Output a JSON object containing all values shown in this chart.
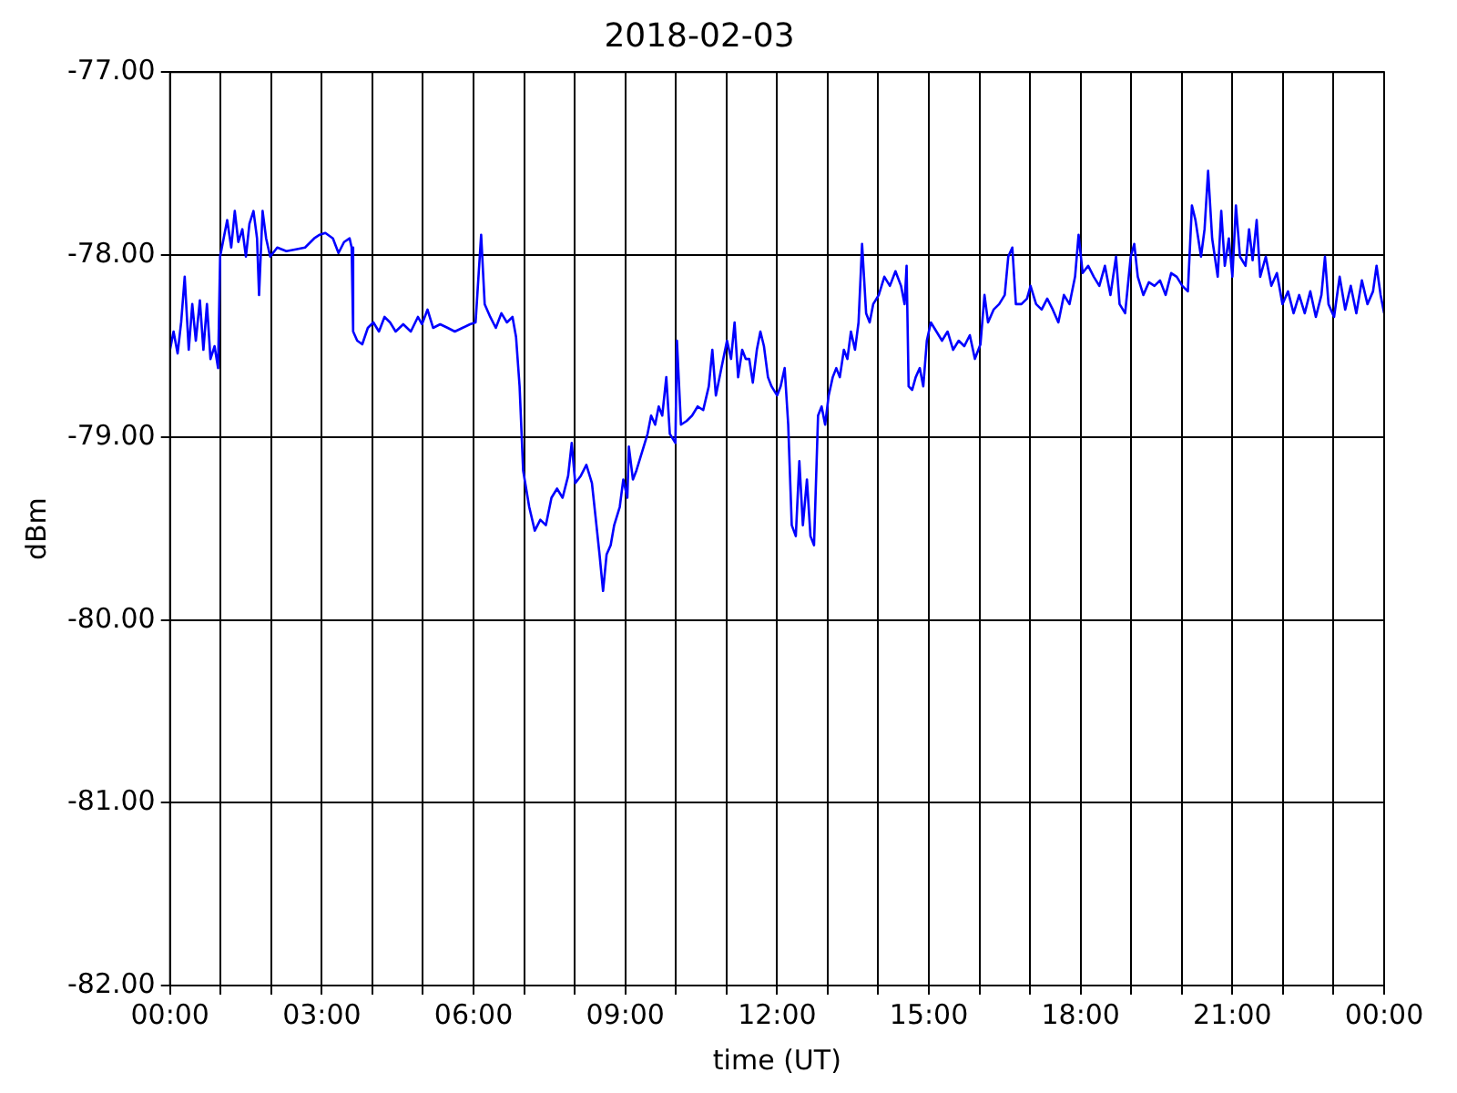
{
  "chart_data": {
    "type": "line",
    "title": "2018-02-03",
    "xlabel": "time (UT)",
    "ylabel": "dBm",
    "x": [
      0,
      0.07,
      0.15,
      0.22,
      0.29,
      0.37,
      0.44,
      0.51,
      0.59,
      0.66,
      0.73,
      0.8,
      0.88,
      0.95,
      0.99,
      1.06,
      1.13,
      1.21,
      1.28,
      1.35,
      1.43,
      1.5,
      1.57,
      1.65,
      1.72,
      1.76,
      1.83,
      1.9,
      1.98,
      2.12,
      2.3,
      2.49,
      2.67,
      2.85,
      2.96,
      3.07,
      3.22,
      3.33,
      3.44,
      3.55,
      3.59,
      3.62,
      3.7,
      3.8,
      3.91,
      4.02,
      4.13,
      4.24,
      4.35,
      4.46,
      4.61,
      4.76,
      4.9,
      4.98,
      5.09,
      5.2,
      5.34,
      5.49,
      5.63,
      5.78,
      5.93,
      6.04,
      6.15,
      6.22,
      6.33,
      6.44,
      6.55,
      6.66,
      6.77,
      6.84,
      6.91,
      6.98,
      7.1,
      7.21,
      7.32,
      7.43,
      7.54,
      7.65,
      7.76,
      7.87,
      7.94,
      8.01,
      8.12,
      8.23,
      8.34,
      8.41,
      8.49,
      8.56,
      8.63,
      8.71,
      8.78,
      8.89,
      8.96,
      9.04,
      9.07,
      9.15,
      9.22,
      9.33,
      9.44,
      9.51,
      9.59,
      9.66,
      9.73,
      9.81,
      9.88,
      9.99,
      10.02,
      10.1,
      10.21,
      10.32,
      10.43,
      10.54,
      10.65,
      10.72,
      10.79,
      10.9,
      11.01,
      11.09,
      11.16,
      11.23,
      11.31,
      11.38,
      11.45,
      11.52,
      11.6,
      11.67,
      11.74,
      11.82,
      11.89,
      12,
      12.07,
      12.15,
      12.22,
      12.29,
      12.37,
      12.44,
      12.51,
      12.59,
      12.66,
      12.73,
      12.81,
      12.88,
      12.95,
      13.02,
      13.1,
      13.17,
      13.24,
      13.32,
      13.39,
      13.46,
      13.54,
      13.61,
      13.68,
      13.76,
      13.83,
      13.9,
      14.01,
      14.12,
      14.23,
      14.34,
      14.45,
      14.52,
      14.56,
      14.6,
      14.67,
      14.74,
      14.82,
      14.89,
      14.96,
      15.04,
      15.15,
      15.26,
      15.37,
      15.48,
      15.59,
      15.7,
      15.81,
      15.91,
      16.02,
      16.1,
      16.17,
      16.28,
      16.39,
      16.5,
      16.57,
      16.65,
      16.72,
      16.83,
      16.94,
      17.01,
      17.12,
      17.23,
      17.34,
      17.45,
      17.56,
      17.67,
      17.78,
      17.89,
      17.96,
      18.04,
      18.15,
      18.26,
      18.37,
      18.48,
      18.59,
      18.7,
      18.77,
      18.88,
      18.99,
      19.06,
      19.13,
      19.24,
      19.35,
      19.46,
      19.57,
      19.68,
      19.79,
      19.9,
      20.01,
      20.12,
      20.2,
      20.27,
      20.38,
      20.45,
      20.52,
      20.6,
      20.71,
      20.78,
      20.85,
      20.93,
      21,
      21.07,
      21.15,
      21.26,
      21.33,
      21.4,
      21.48,
      21.55,
      21.66,
      21.77,
      21.88,
      21.99,
      22.1,
      22.21,
      22.32,
      22.43,
      22.54,
      22.65,
      22.76,
      22.83,
      22.9,
      23.01,
      23.12,
      23.23,
      23.34,
      23.45,
      23.56,
      23.67,
      23.78,
      23.85,
      23.93,
      24
    ],
    "series": [
      {
        "color": "#0000ff",
        "values": [
          -78.52,
          -78.42,
          -78.54,
          -78.37,
          -78.12,
          -78.52,
          -78.27,
          -78.47,
          -78.25,
          -78.52,
          -78.27,
          -78.57,
          -78.5,
          -78.62,
          -78.01,
          -77.91,
          -77.81,
          -77.96,
          -77.76,
          -77.93,
          -77.86,
          -78.01,
          -77.83,
          -77.76,
          -77.91,
          -78.22,
          -77.76,
          -77.91,
          -78.01,
          -77.96,
          -77.98,
          -77.97,
          -77.96,
          -77.91,
          -77.89,
          -77.88,
          -77.91,
          -77.99,
          -77.93,
          -77.91,
          -77.96,
          -78.42,
          -78.47,
          -78.49,
          -78.4,
          -78.37,
          -78.42,
          -78.34,
          -78.37,
          -78.42,
          -78.38,
          -78.42,
          -78.34,
          -78.38,
          -78.3,
          -78.4,
          -78.38,
          -78.4,
          -78.42,
          -78.4,
          -78.38,
          -78.37,
          -77.89,
          -78.27,
          -78.34,
          -78.4,
          -78.32,
          -78.37,
          -78.34,
          -78.45,
          -78.72,
          -79.18,
          -79.38,
          -79.51,
          -79.45,
          -79.48,
          -79.33,
          -79.28,
          -79.33,
          -79.21,
          -79.03,
          -79.25,
          -79.21,
          -79.15,
          -79.25,
          -79.43,
          -79.64,
          -79.84,
          -79.64,
          -79.59,
          -79.48,
          -79.38,
          -79.23,
          -79.33,
          -79.05,
          -79.23,
          -79.18,
          -79.08,
          -78.98,
          -78.88,
          -78.93,
          -78.83,
          -78.88,
          -78.67,
          -78.98,
          -79.03,
          -78.47,
          -78.93,
          -78.91,
          -78.88,
          -78.83,
          -78.85,
          -78.72,
          -78.52,
          -78.77,
          -78.62,
          -78.47,
          -78.57,
          -78.37,
          -78.67,
          -78.52,
          -78.57,
          -78.57,
          -78.7,
          -78.52,
          -78.42,
          -78.5,
          -78.67,
          -78.72,
          -78.77,
          -78.72,
          -78.62,
          -78.93,
          -79.48,
          -79.54,
          -79.13,
          -79.48,
          -79.23,
          -79.54,
          -79.59,
          -78.88,
          -78.83,
          -78.93,
          -78.77,
          -78.67,
          -78.62,
          -78.67,
          -78.52,
          -78.57,
          -78.42,
          -78.52,
          -78.37,
          -77.94,
          -78.32,
          -78.37,
          -78.27,
          -78.22,
          -78.12,
          -78.17,
          -78.09,
          -78.17,
          -78.27,
          -78.06,
          -78.72,
          -78.74,
          -78.67,
          -78.62,
          -78.72,
          -78.47,
          -78.37,
          -78.42,
          -78.47,
          -78.42,
          -78.52,
          -78.47,
          -78.5,
          -78.44,
          -78.57,
          -78.49,
          -78.22,
          -78.37,
          -78.3,
          -78.27,
          -78.22,
          -78.01,
          -77.96,
          -78.27,
          -78.27,
          -78.24,
          -78.17,
          -78.27,
          -78.3,
          -78.24,
          -78.3,
          -78.37,
          -78.22,
          -78.27,
          -78.12,
          -77.89,
          -78.1,
          -78.06,
          -78.12,
          -78.17,
          -78.06,
          -78.22,
          -78.01,
          -78.27,
          -78.32,
          -78.01,
          -77.94,
          -78.12,
          -78.22,
          -78.15,
          -78.17,
          -78.14,
          -78.22,
          -78.1,
          -78.12,
          -78.17,
          -78.2,
          -77.73,
          -77.81,
          -78.01,
          -77.86,
          -77.54,
          -77.91,
          -78.12,
          -77.76,
          -78.06,
          -77.91,
          -78.12,
          -77.73,
          -78.01,
          -78.06,
          -77.86,
          -78.03,
          -77.81,
          -78.12,
          -78.01,
          -78.17,
          -78.1,
          -78.27,
          -78.2,
          -78.32,
          -78.22,
          -78.32,
          -78.2,
          -78.34,
          -78.22,
          -78.01,
          -78.27,
          -78.34,
          -78.12,
          -78.3,
          -78.17,
          -78.32,
          -78.14,
          -78.27,
          -78.2,
          -78.06,
          -78.22,
          -78.32
        ]
      }
    ],
    "xlim": [
      0,
      24
    ],
    "xticks": [
      {
        "value": 0,
        "label": "00:00"
      },
      {
        "value": 1,
        "label": null
      },
      {
        "value": 2,
        "label": null
      },
      {
        "value": 3,
        "label": "03:00"
      },
      {
        "value": 4,
        "label": null
      },
      {
        "value": 5,
        "label": null
      },
      {
        "value": 6,
        "label": "06:00"
      },
      {
        "value": 7,
        "label": null
      },
      {
        "value": 8,
        "label": null
      },
      {
        "value": 9,
        "label": "09:00"
      },
      {
        "value": 10,
        "label": null
      },
      {
        "value": 11,
        "label": null
      },
      {
        "value": 12,
        "label": "12:00"
      },
      {
        "value": 13,
        "label": null
      },
      {
        "value": 14,
        "label": null
      },
      {
        "value": 15,
        "label": "15:00"
      },
      {
        "value": 16,
        "label": null
      },
      {
        "value": 17,
        "label": null
      },
      {
        "value": 18,
        "label": "18:00"
      },
      {
        "value": 19,
        "label": null
      },
      {
        "value": 20,
        "label": null
      },
      {
        "value": 21,
        "label": "21:00"
      },
      {
        "value": 22,
        "label": null
      },
      {
        "value": 23,
        "label": null
      },
      {
        "value": 24,
        "label": "00:00"
      }
    ],
    "ylim": [
      -82,
      -77
    ],
    "yticks": [
      {
        "value": -82,
        "label": "-82.00"
      },
      {
        "value": -81,
        "label": "-81.00"
      },
      {
        "value": -80,
        "label": "-80.00"
      },
      {
        "value": -79,
        "label": "-79.00"
      },
      {
        "value": -78,
        "label": "-78.00"
      },
      {
        "value": -77,
        "label": "-77.00"
      }
    ],
    "grid": true,
    "marker": "none",
    "line_style": "solid"
  }
}
